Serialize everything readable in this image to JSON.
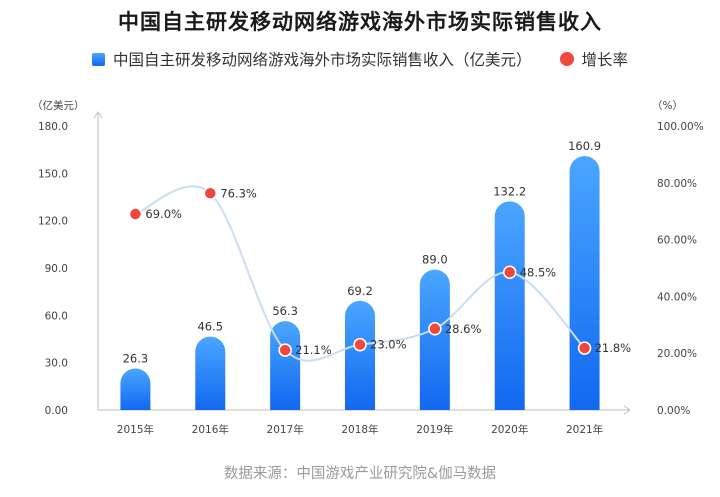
{
  "title": "中国自主研发移动网络游戏海外市场实际销售收入",
  "legend": {
    "bar_label": "中国自主研发移动网络游戏海外市场实际销售收入（亿美元）",
    "line_label": "增长率"
  },
  "source": "数据来源：中国游戏产业研究院&伽马数据",
  "colors": {
    "bar_top": "#4aa6ff",
    "bar_bottom": "#1268f0",
    "line": "#c9ddf7",
    "point": "#f0483a"
  },
  "chart_data": {
    "type": "bar",
    "categories": [
      "2015年",
      "2016年",
      "2017年",
      "2018年",
      "2019年",
      "2020年",
      "2021年"
    ],
    "series": [
      {
        "name": "中国自主研发移动网络游戏海外市场实际销售收入（亿美元）",
        "type": "bar",
        "axis": "left",
        "values": [
          26.3,
          46.5,
          56.3,
          69.2,
          89.0,
          132.2,
          160.9
        ],
        "labels": [
          "26.3",
          "46.5",
          "56.3",
          "69.2",
          "89.0",
          "132.2",
          "160.9"
        ]
      },
      {
        "name": "增长率",
        "type": "line",
        "axis": "right",
        "values": [
          69.0,
          76.3,
          21.1,
          23.0,
          28.6,
          48.5,
          21.8
        ],
        "labels": [
          "69.0%",
          "76.3%",
          "21.1%",
          "23.0%",
          "28.6%",
          "48.5%",
          "21.8%"
        ]
      }
    ],
    "y_left": {
      "unit": "（亿美元）",
      "range": [
        0,
        180
      ],
      "ticks": [
        "0.00",
        "30.0",
        "60.0",
        "90.0",
        "120.0",
        "150.0",
        "180.0"
      ]
    },
    "y_right": {
      "unit": "（%）",
      "range": [
        0,
        100
      ],
      "ticks": [
        "0.00%",
        "20.00%",
        "40.00%",
        "60.00%",
        "80.00%",
        "100.00%"
      ]
    },
    "grid": false,
    "legend_position": "top-center"
  }
}
